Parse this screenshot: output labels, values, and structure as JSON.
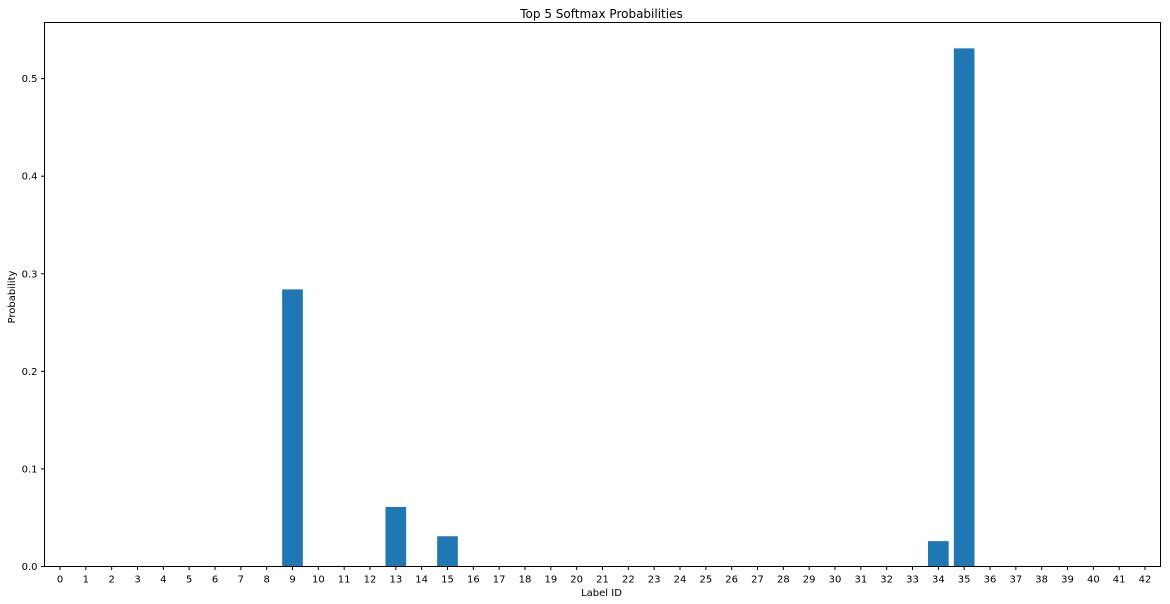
{
  "chart_data": {
    "type": "bar",
    "title": "Top 5 Softmax Probabilities",
    "xlabel": "Label ID",
    "ylabel": "Probability",
    "categories": [
      "0",
      "1",
      "2",
      "3",
      "4",
      "5",
      "6",
      "7",
      "8",
      "9",
      "10",
      "11",
      "12",
      "13",
      "14",
      "15",
      "16",
      "17",
      "18",
      "19",
      "20",
      "21",
      "22",
      "23",
      "24",
      "25",
      "26",
      "27",
      "28",
      "29",
      "30",
      "31",
      "32",
      "33",
      "34",
      "35",
      "36",
      "37",
      "38",
      "39",
      "40",
      "41",
      "42"
    ],
    "values": [
      0,
      0,
      0,
      0,
      0,
      0,
      0,
      0,
      0,
      0.284,
      0,
      0,
      0,
      0.061,
      0,
      0.031,
      0,
      0,
      0,
      0,
      0,
      0,
      0,
      0,
      0,
      0,
      0,
      0,
      0,
      0,
      0,
      0,
      0,
      0,
      0.026,
      0.531,
      0,
      0,
      0,
      0,
      0,
      0,
      0
    ],
    "yticks": [
      "0.0",
      "0.1",
      "0.2",
      "0.3",
      "0.4",
      "0.5"
    ],
    "ylim": [
      0,
      0.5575
    ],
    "xlim": [
      -0.6,
      42.6
    ],
    "bar_color": "#1f77b4",
    "grid": false
  }
}
